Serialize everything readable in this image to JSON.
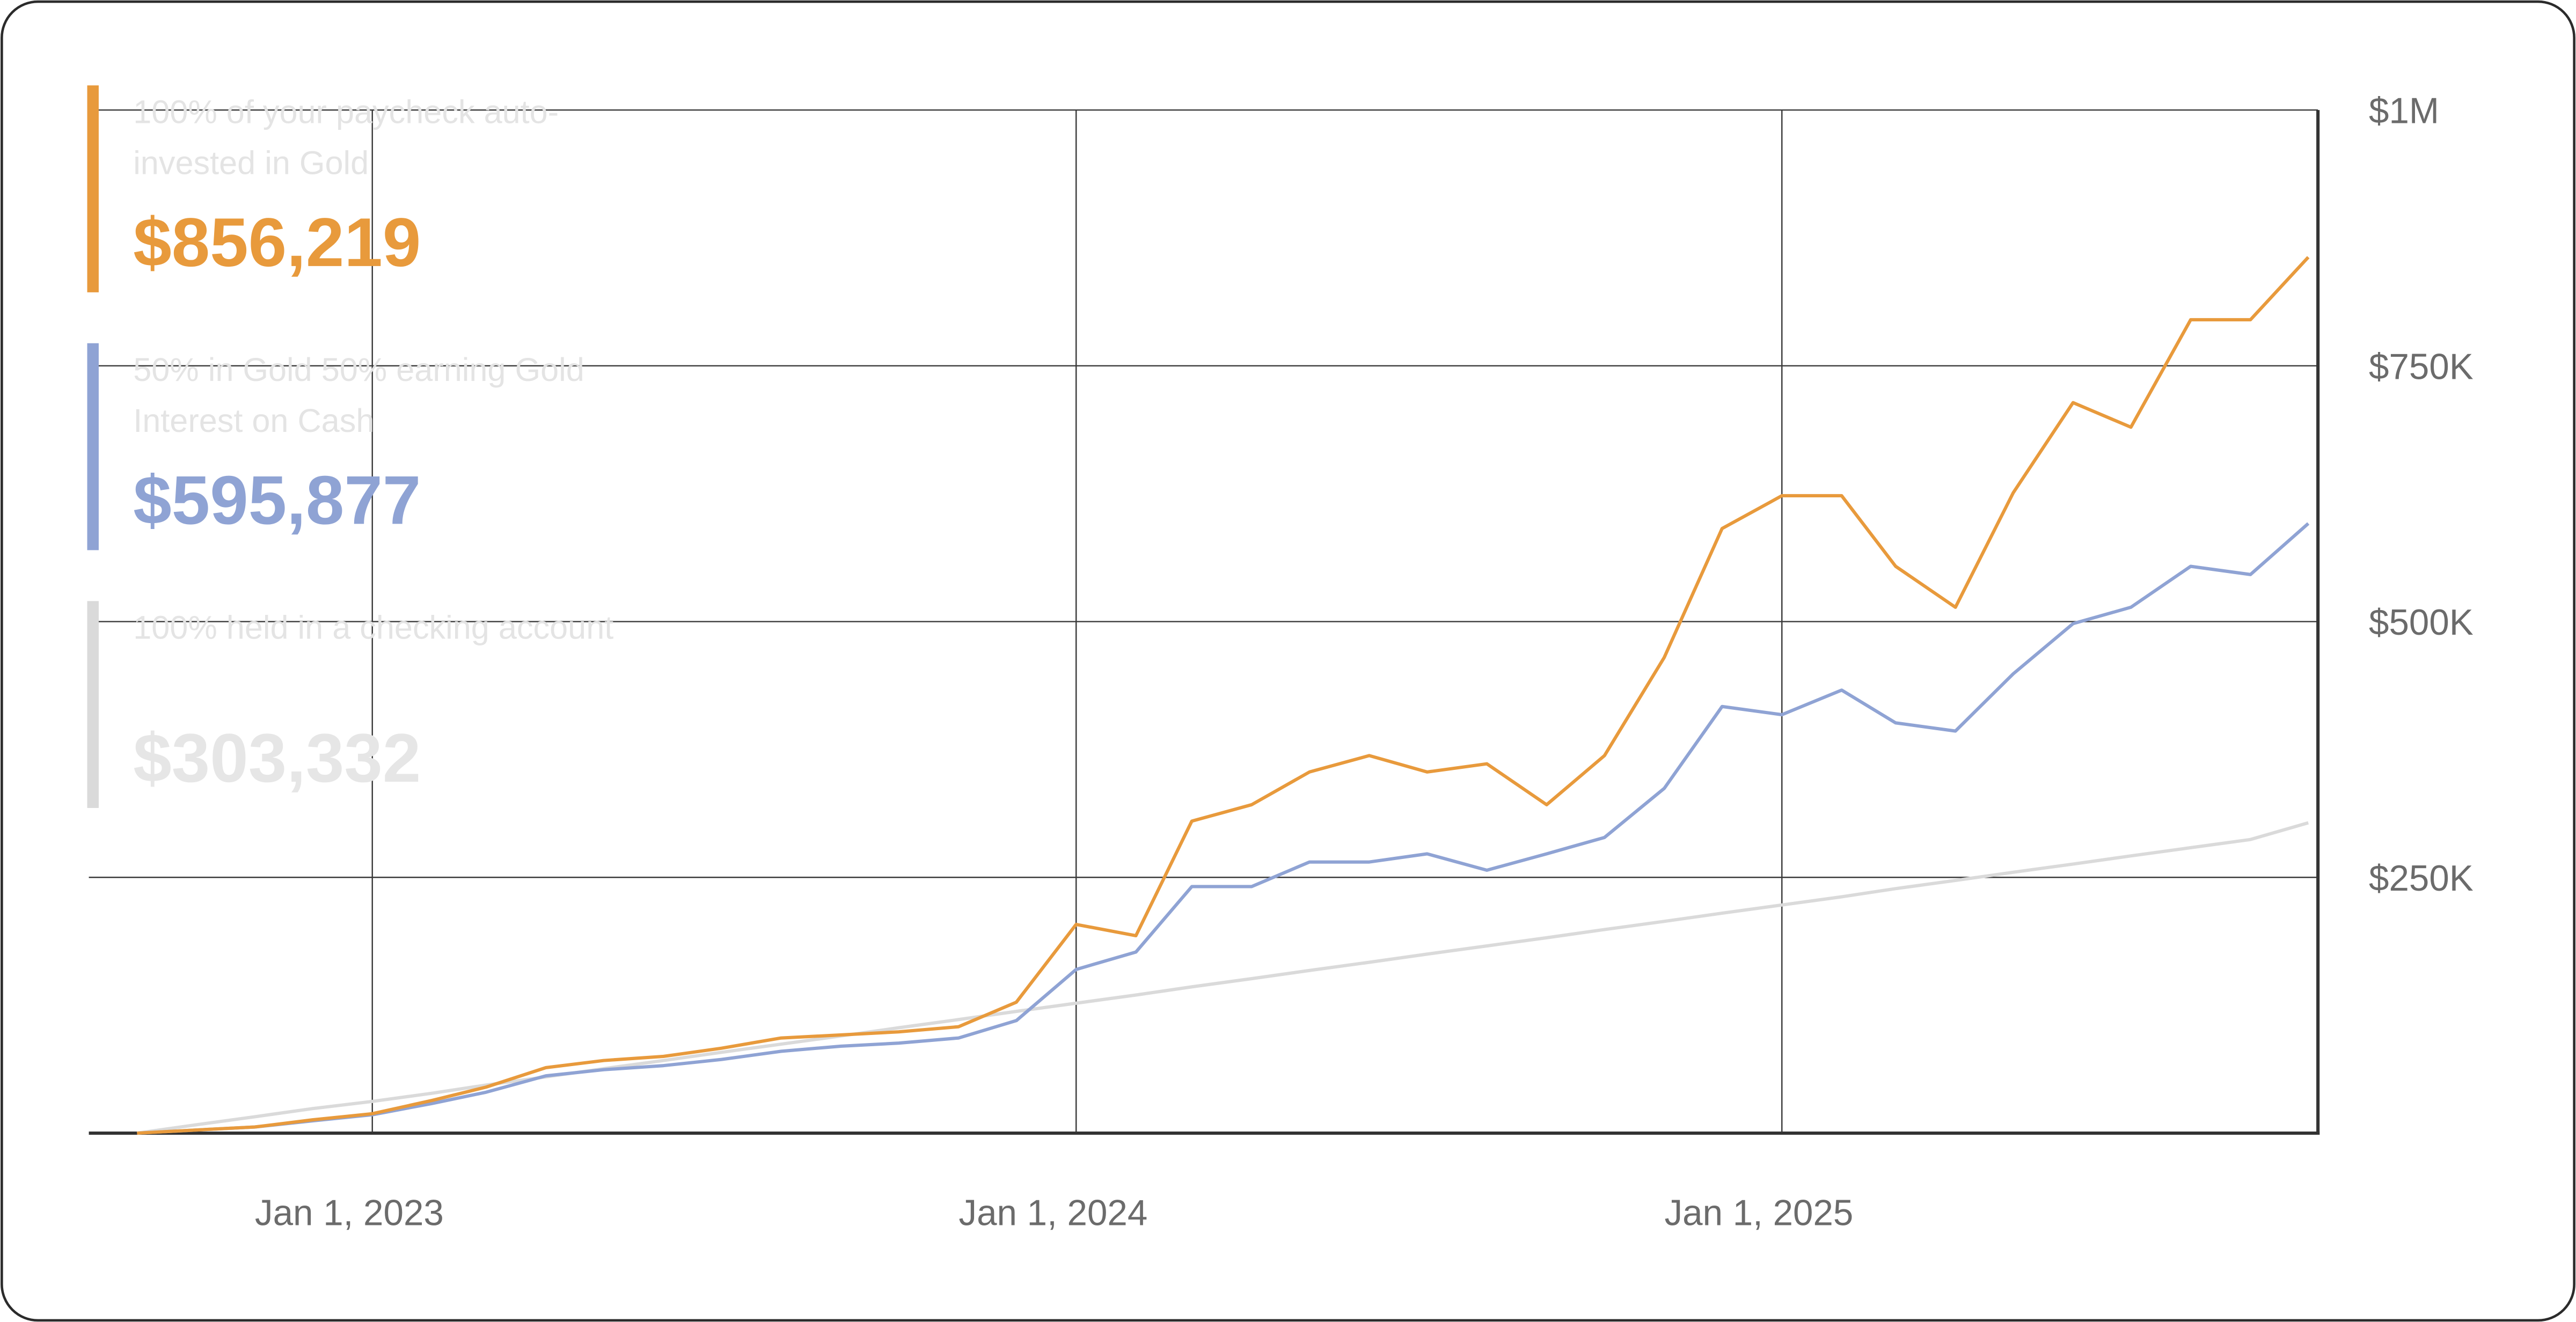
{
  "chart_data": {
    "type": "line",
    "x": [
      "2022-09-01",
      "2022-10-01",
      "2022-11-01",
      "2022-12-01",
      "2023-01-01",
      "2023-02-01",
      "2023-03-01",
      "2023-04-01",
      "2023-05-01",
      "2023-06-01",
      "2023-07-01",
      "2023-08-01",
      "2023-09-01",
      "2023-10-01",
      "2023-11-01",
      "2023-12-01",
      "2024-01-01",
      "2024-02-01",
      "2024-03-01",
      "2024-04-01",
      "2024-05-01",
      "2024-06-01",
      "2024-07-01",
      "2024-08-01",
      "2024-09-01",
      "2024-10-01",
      "2024-11-01",
      "2024-12-01",
      "2025-01-01",
      "2025-02-01",
      "2025-03-01",
      "2025-04-01",
      "2025-05-01",
      "2025-06-01",
      "2025-07-01",
      "2025-08-01",
      "2025-09-01",
      "2025-10-01"
    ],
    "xlim": [
      "2022-08-07",
      "2025-10-06"
    ],
    "xticks": [
      {
        "value": "2023-01-01",
        "label": "Jan 1, 2023"
      },
      {
        "value": "2024-01-01",
        "label": "Jan 1, 2024"
      },
      {
        "value": "2025-01-01",
        "label": "Jan 1, 2025"
      }
    ],
    "ylim": [
      0,
      1000000
    ],
    "yticks": [
      {
        "value": 250000,
        "label": "$250K"
      },
      {
        "value": 500000,
        "label": "$500K"
      },
      {
        "value": 750000,
        "label": "$750K"
      },
      {
        "value": 1000000,
        "label": "$1M"
      }
    ],
    "grid": true,
    "series": [
      {
        "name": "100% of your paycheck auto-invested in Gold",
        "color": "#E89A3C",
        "values": [
          0,
          3000,
          6000,
          13000,
          19000,
          32000,
          45000,
          64000,
          71000,
          75000,
          83000,
          93000,
          96000,
          99000,
          104000,
          128000,
          204000,
          193000,
          305000,
          321000,
          353000,
          369000,
          353000,
          361000,
          321000,
          369000,
          465000,
          591000,
          623000,
          623000,
          554000,
          514000,
          626000,
          714000,
          690000,
          795000,
          795000,
          856219
        ],
        "value_labels": [
          null,
          null,
          null,
          null,
          null,
          null,
          null,
          null,
          null,
          null,
          null,
          null,
          null,
          null,
          null,
          null,
          null,
          null,
          null,
          null,
          null,
          null,
          null,
          null,
          null,
          null,
          null,
          null,
          null,
          null,
          null,
          null,
          null,
          null,
          null,
          null,
          null,
          "$856,219"
        ]
      },
      {
        "name": "50% in Gold 50% earning Gold Interest on Cash",
        "color": "#8FA3D4",
        "values": [
          0,
          3000,
          6000,
          12000,
          18000,
          29000,
          40000,
          56000,
          62000,
          66000,
          72000,
          80000,
          85000,
          88000,
          93000,
          110000,
          160000,
          177000,
          241000,
          241000,
          265000,
          265000,
          273000,
          257000,
          273000,
          289000,
          337000,
          417000,
          409000,
          433000,
          401000,
          393000,
          449000,
          498000,
          514000,
          554000,
          546000,
          595877
        ],
        "value_labels": [
          null,
          null,
          null,
          null,
          null,
          null,
          null,
          null,
          null,
          null,
          null,
          null,
          null,
          null,
          null,
          null,
          null,
          null,
          null,
          null,
          null,
          null,
          null,
          null,
          null,
          null,
          null,
          null,
          null,
          null,
          null,
          null,
          null,
          null,
          null,
          null,
          null,
          "$595,877"
        ]
      },
      {
        "name": "100% held in a checking account",
        "color": "#DADADA",
        "values": [
          0,
          8000,
          16000,
          24000,
          31000,
          39000,
          47000,
          55000,
          63000,
          71000,
          79000,
          87000,
          95000,
          103000,
          111000,
          119000,
          127000,
          135000,
          143000,
          151000,
          159000,
          167000,
          175000,
          183000,
          191000,
          199000,
          207000,
          215000,
          223000,
          231000,
          239000,
          247000,
          255000,
          263000,
          271000,
          279000,
          287000,
          303332
        ],
        "value_labels": [
          null,
          null,
          null,
          null,
          null,
          null,
          null,
          null,
          null,
          null,
          null,
          null,
          null,
          null,
          null,
          null,
          null,
          null,
          null,
          null,
          null,
          null,
          null,
          null,
          null,
          null,
          null,
          null,
          null,
          null,
          null,
          null,
          null,
          null,
          null,
          null,
          null,
          "$303,332"
        ]
      }
    ]
  }
}
